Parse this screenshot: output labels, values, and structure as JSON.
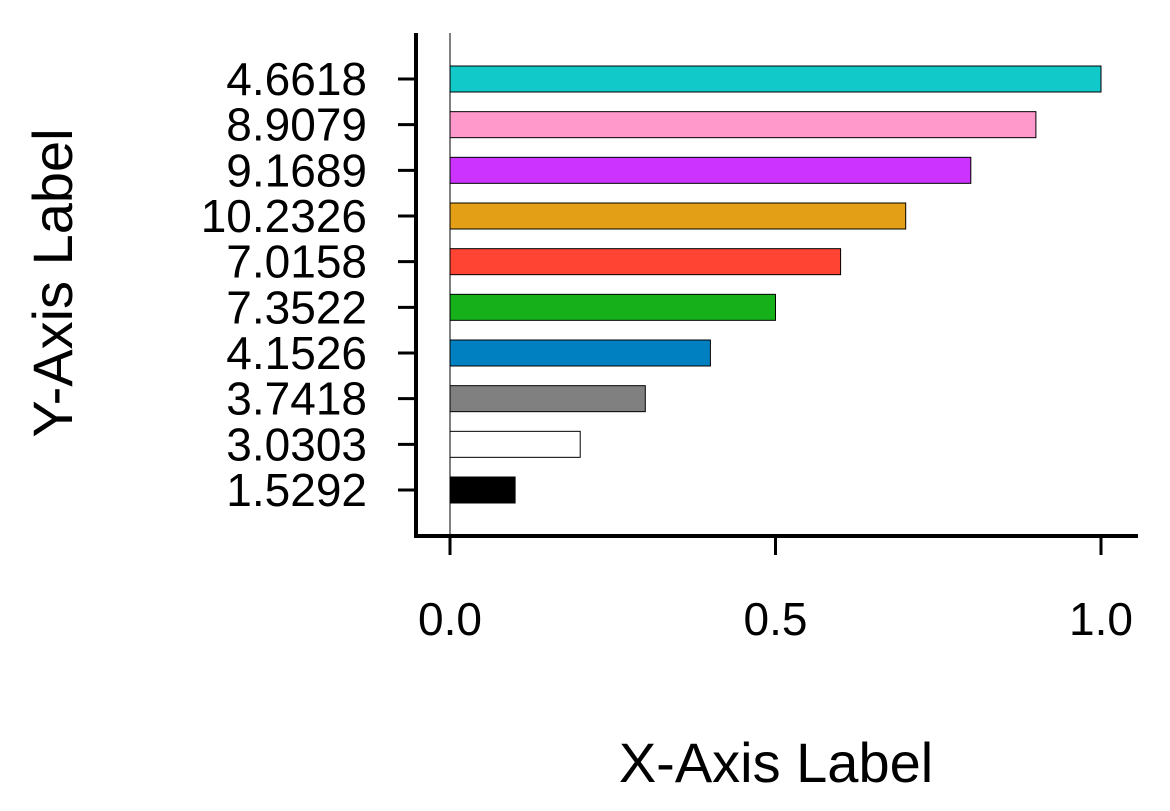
{
  "chart_data": {
    "type": "bar",
    "orientation": "horizontal",
    "title": "",
    "xlabel": "X-Axis Label",
    "ylabel": "Y-Axis Label",
    "xlim": [
      -0.05,
      1.06
    ],
    "xticks": [
      {
        "value": 0.0,
        "label": "0.0"
      },
      {
        "value": 0.5,
        "label": "0.5"
      },
      {
        "value": 1.0,
        "label": "1.0"
      }
    ],
    "grid": false,
    "legend": "none",
    "bars": [
      {
        "category": "1.5292",
        "value": 0.1,
        "color": "#000000"
      },
      {
        "category": "3.0303",
        "value": 0.2,
        "color": "#ffffff"
      },
      {
        "category": "3.7418",
        "value": 0.3,
        "color": "#808080"
      },
      {
        "category": "4.1526",
        "value": 0.4,
        "color": "#0080c0"
      },
      {
        "category": "7.3522",
        "value": 0.5,
        "color": "#15b01a"
      },
      {
        "category": "7.0158",
        "value": 0.6,
        "color": "#ff4433"
      },
      {
        "category": "10.2326",
        "value": 0.7,
        "color": "#e39f16"
      },
      {
        "category": "9.1689",
        "value": 0.8,
        "color": "#cc33ff"
      },
      {
        "category": "8.9079",
        "value": 0.9,
        "color": "#ff99cc"
      },
      {
        "category": "4.6618",
        "value": 1.0,
        "color": "#11c9c9"
      }
    ]
  }
}
